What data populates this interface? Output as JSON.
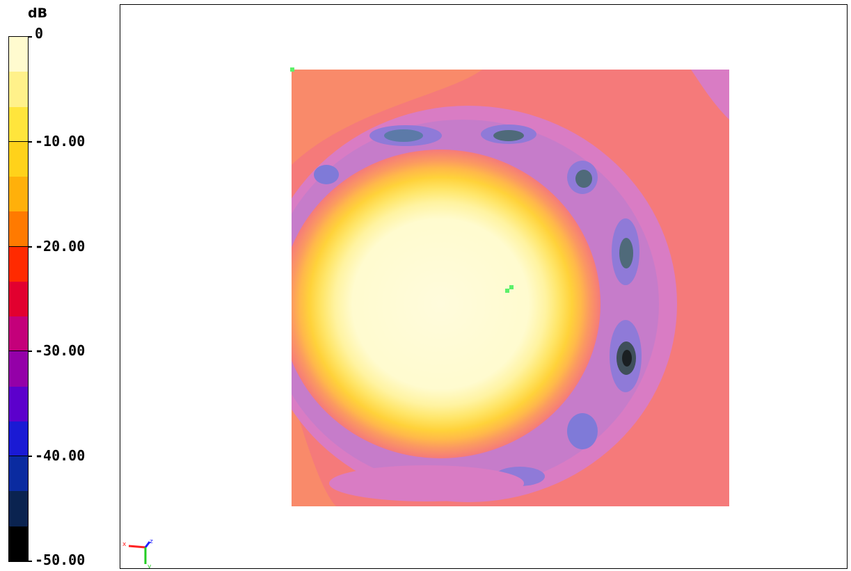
{
  "legend": {
    "unit": "dB",
    "tick_labels": [
      "0",
      "-10.00",
      "-20.00",
      "-30.00",
      "-40.00",
      "-50.00"
    ],
    "tick_values": [
      0,
      -10,
      -20,
      -30,
      -40,
      -50
    ],
    "levels": [
      {
        "from": 0,
        "to": -3.33,
        "color": "#fffbcf"
      },
      {
        "from": -3.33,
        "to": -6.67,
        "color": "#fff18a"
      },
      {
        "from": -6.67,
        "to": -10,
        "color": "#ffe53c"
      },
      {
        "from": -10,
        "to": -13.33,
        "color": "#ffd21a"
      },
      {
        "from": -13.33,
        "to": -16.67,
        "color": "#ffb00a"
      },
      {
        "from": -16.67,
        "to": -20,
        "color": "#ff7a00"
      },
      {
        "from": -20,
        "to": -23.33,
        "color": "#ff2a00"
      },
      {
        "from": -23.33,
        "to": -26.67,
        "color": "#e2002f"
      },
      {
        "from": -26.67,
        "to": -30,
        "color": "#c4007a"
      },
      {
        "from": -30,
        "to": -33.33,
        "color": "#9400a8"
      },
      {
        "from": -33.33,
        "to": -36.67,
        "color": "#5c00cc"
      },
      {
        "from": -36.67,
        "to": -40,
        "color": "#1a1ad4"
      },
      {
        "from": -40,
        "to": -43.33,
        "color": "#0a2ba0"
      },
      {
        "from": -43.33,
        "to": -46.67,
        "color": "#0a2350"
      },
      {
        "from": -46.67,
        "to": -50,
        "color": "#000000"
      }
    ]
  },
  "chart_data": {
    "type": "heatmap",
    "title": "",
    "unit": "dB",
    "colorbar_range": [
      0,
      -50
    ],
    "description_levels": "contour map of relative field level; bright yellow-white main lobe at center-left, lavender/blue side-lobe ring with dark nulls",
    "axes_triad": {
      "x_label": "x",
      "y_label": "y",
      "z_label": "z"
    },
    "grid": false
  },
  "colors": {
    "background_field": "#f57a7a",
    "mid_field": "#f98a6a",
    "ring_lavender": "#d97cc4",
    "ring_purple": "#a17bd8",
    "ring_blue": "#6a7ad0",
    "null_dark": "#4a5f6a",
    "marker_green": "#5cf06a"
  }
}
